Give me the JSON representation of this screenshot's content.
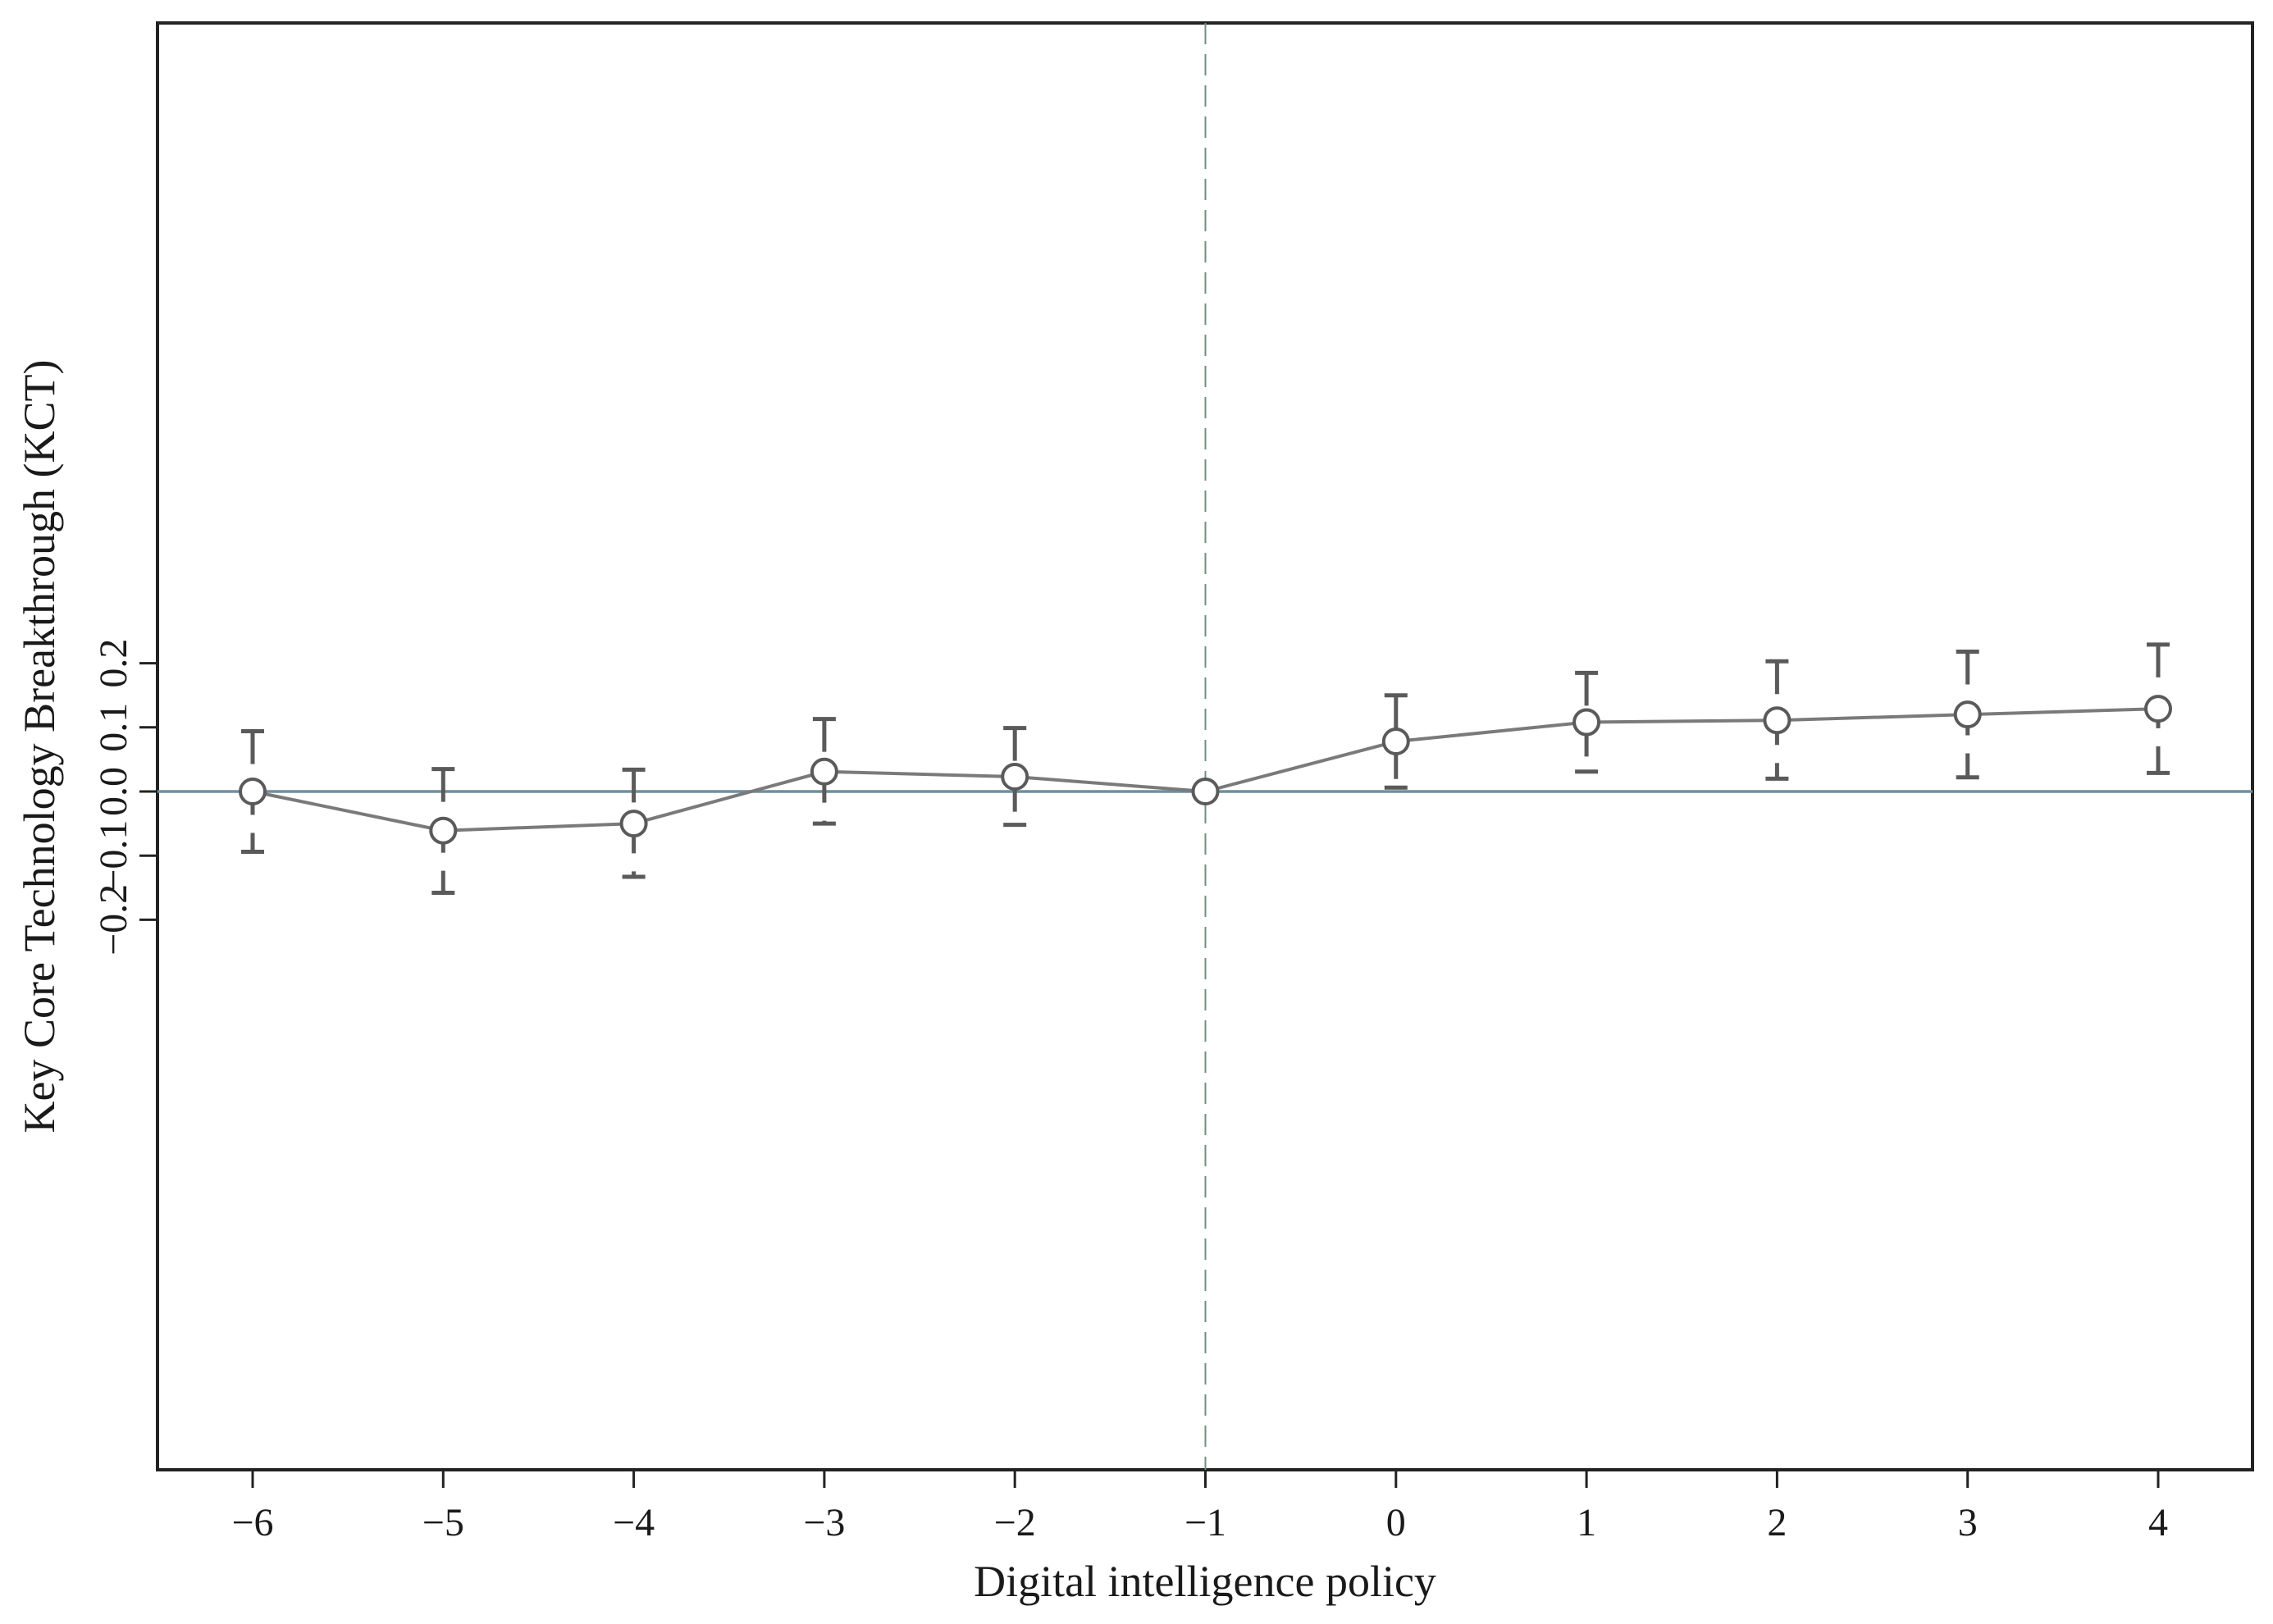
{
  "chart_data": {
    "type": "line",
    "title": "",
    "xlabel": "Digital intelligence policy",
    "ylabel": "Key Core Technology Breakthrough (KCT)",
    "x_ticks": [
      "−6",
      "−5",
      "−4",
      "−3",
      "−2",
      "−1",
      "0",
      "1",
      "2",
      "3",
      "4"
    ],
    "y_ticks": [
      "−0.2",
      "−0.1",
      "0.0",
      "0.1",
      "0.2"
    ],
    "y_tick_values": [
      -0.2,
      -0.1,
      0.0,
      0.1,
      0.2
    ],
    "xlim": [
      -6.5,
      4.5
    ],
    "ylim": [
      -0.21,
      0.24
    ],
    "grid": false,
    "reference_lines": {
      "horizontal_y": 0.0,
      "vertical_x": -1
    },
    "colors": {
      "series": "#7a7a7a",
      "ci": "#5a5a5a",
      "zero_line": "#6f8fa0",
      "event_line": "#6f8f7f",
      "frame": "#222222"
    },
    "series": [
      {
        "x": [
          -6,
          -5,
          -4,
          -3,
          -2,
          -1,
          0,
          1,
          2,
          3,
          4
        ],
        "values": [
          0.0,
          -0.061,
          -0.05,
          0.031,
          0.023,
          0.0,
          0.078,
          0.108,
          0.111,
          0.12,
          0.129
        ],
        "ci_low": [
          -0.094,
          -0.158,
          -0.133,
          -0.05,
          -0.052,
          null,
          0.006,
          0.031,
          0.02,
          0.022,
          0.029
        ],
        "ci_high": [
          0.094,
          0.035,
          0.034,
          0.113,
          0.099,
          null,
          0.15,
          0.185,
          0.203,
          0.218,
          0.229
        ]
      }
    ]
  }
}
